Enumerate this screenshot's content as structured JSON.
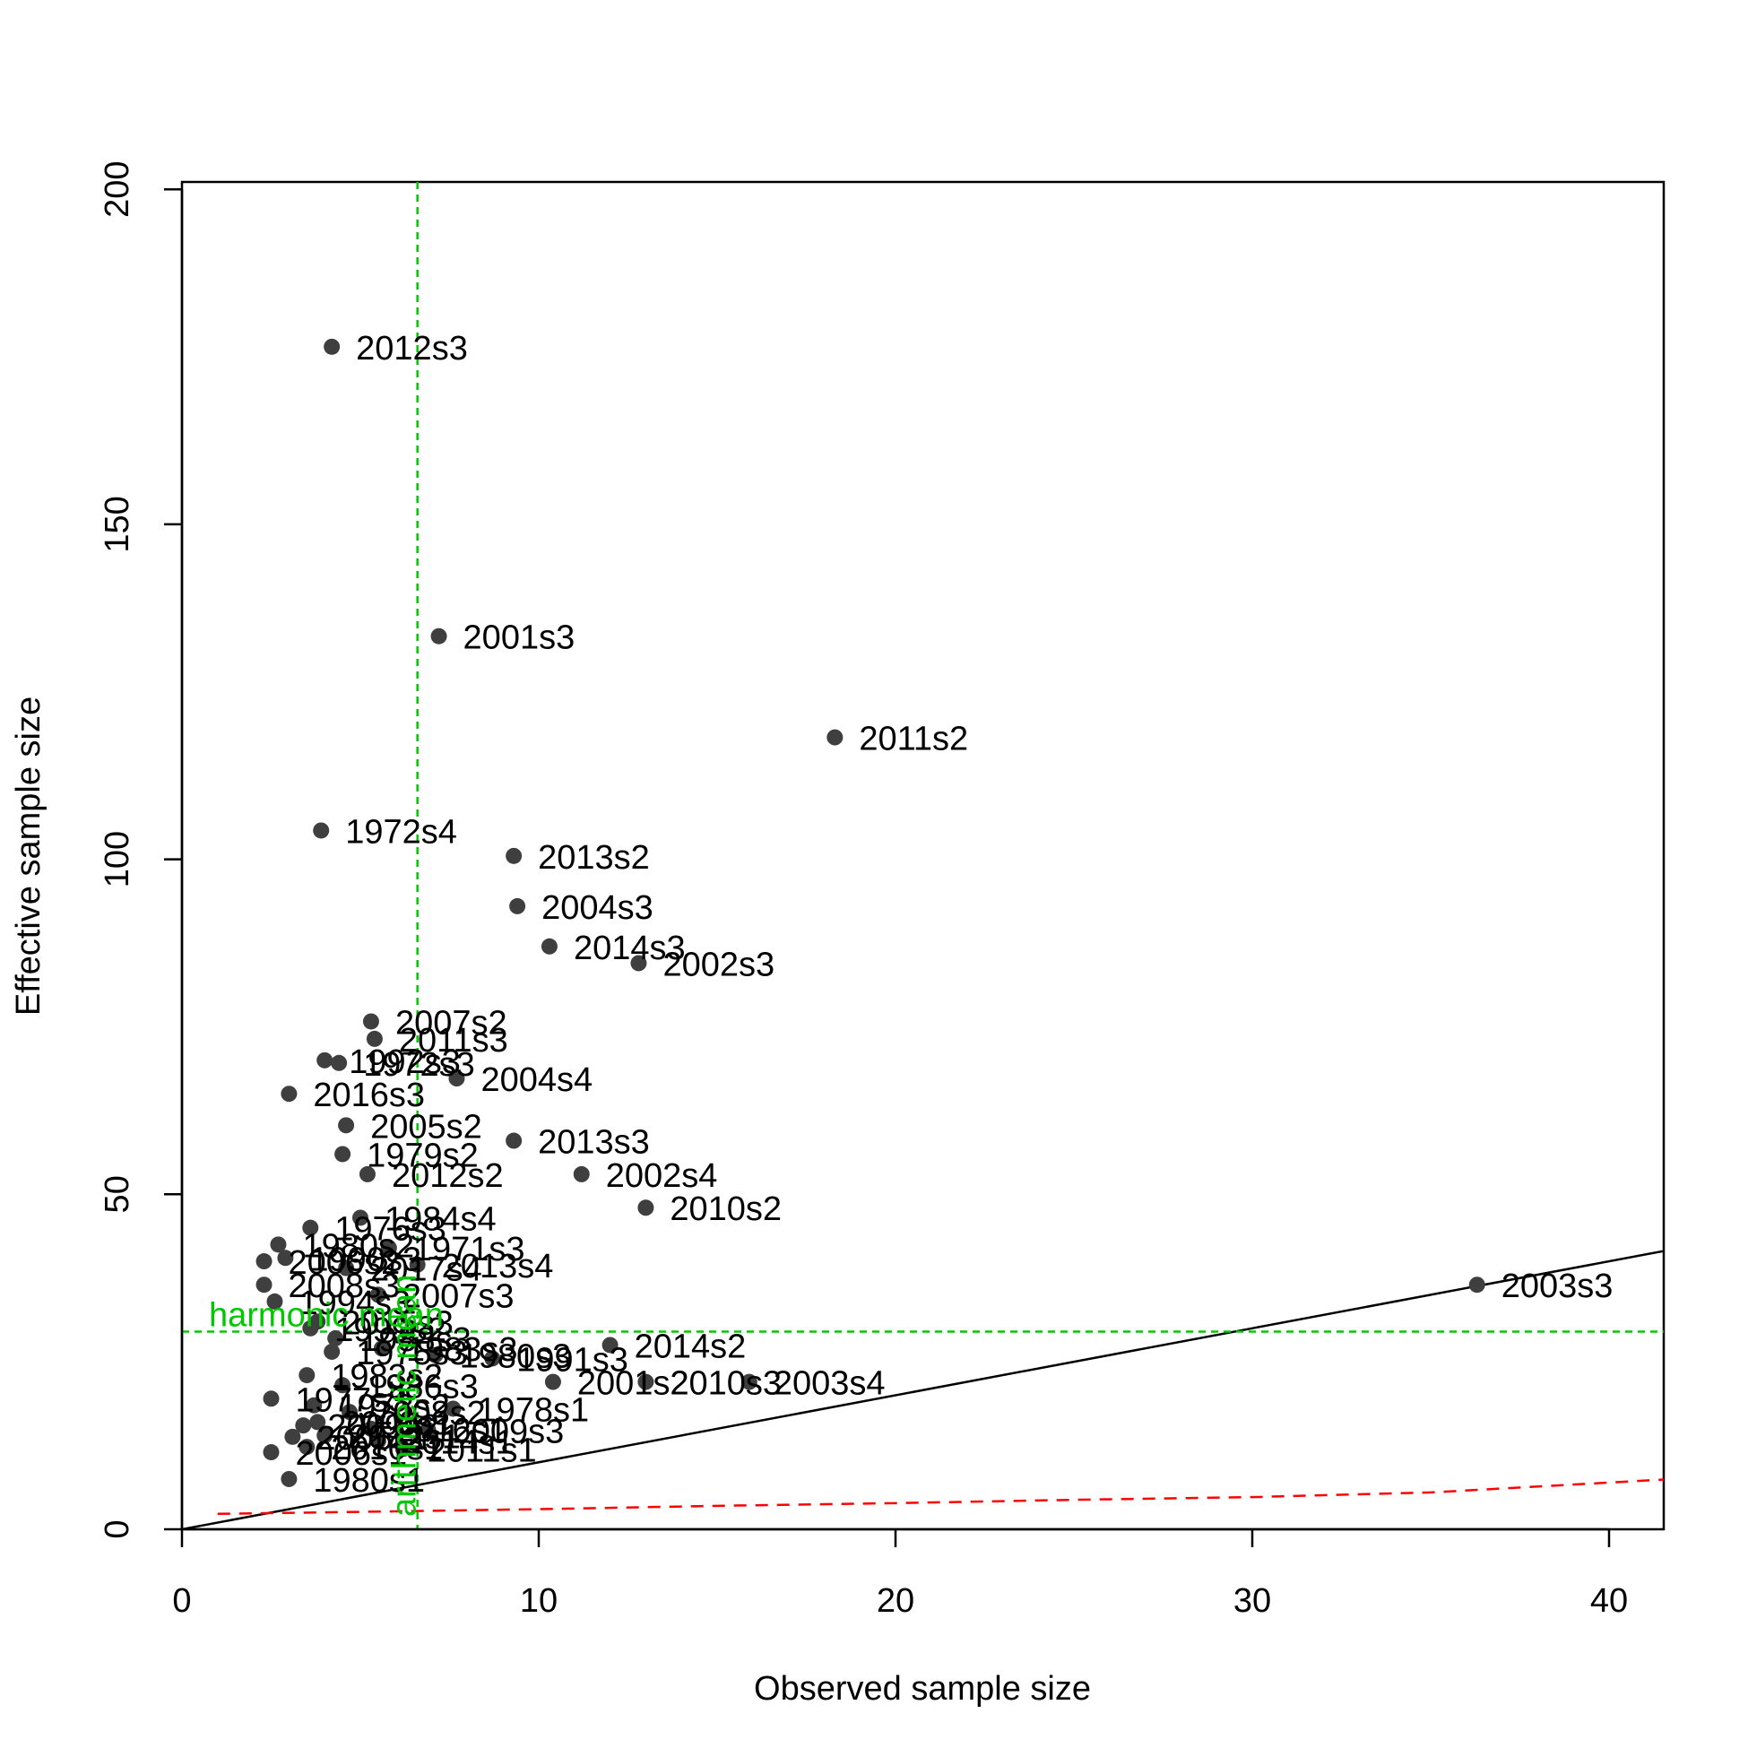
{
  "chart_data": {
    "type": "scatter",
    "title": "",
    "xlabel": "Observed sample size",
    "ylabel": "Effective sample size",
    "xlim": [
      0,
      41.8
    ],
    "ylim": [
      0,
      200
    ],
    "x_ticks": [
      0,
      10,
      20,
      30,
      40
    ],
    "y_ticks": [
      0,
      50,
      100,
      150,
      200
    ],
    "grid": false,
    "colors": {
      "points": "#3f3f3f",
      "identity_line": "#000000",
      "reference_lines": "#00c800",
      "lower_bound_line": "#ff0000"
    },
    "identity_line": {
      "slope": 1,
      "intercept": 0,
      "color": "#000000"
    },
    "reference_lines": {
      "harmonic_mean": {
        "label": "harmonic mean",
        "orientation": "horizontal",
        "value": 29.5
      },
      "arithmetic_mean": {
        "label": "arithmetic mean",
        "orientation": "vertical",
        "value": 6.6
      }
    },
    "lower_bound_line": {
      "style": "dashed",
      "x": [
        1,
        5,
        10,
        15,
        20,
        25,
        30,
        35,
        41.8
      ],
      "y": [
        2.3,
        2.6,
        3.0,
        3.5,
        3.9,
        4.4,
        4.8,
        5.5,
        7.5
      ]
    },
    "points": [
      {
        "label": "2012s3",
        "x": 4.2,
        "y": 176.5
      },
      {
        "label": "2001s3",
        "x": 7.2,
        "y": 133.3
      },
      {
        "label": "2011s2",
        "x": 18.3,
        "y": 118.2
      },
      {
        "label": "1972s4",
        "x": 3.9,
        "y": 104.3
      },
      {
        "label": "2013s2",
        "x": 9.3,
        "y": 100.5
      },
      {
        "label": "2004s3",
        "x": 9.4,
        "y": 93.0
      },
      {
        "label": "2014s3",
        "x": 10.3,
        "y": 87.0
      },
      {
        "label": "2002s3",
        "x": 12.8,
        "y": 84.5
      },
      {
        "label": "2007s2",
        "x": 5.3,
        "y": 75.8
      },
      {
        "label": "2011s3",
        "x": 5.4,
        "y": 73.2
      },
      {
        "label": "1992s3",
        "x": 4.0,
        "y": 70.0
      },
      {
        "label": "1972s3",
        "x": 4.4,
        "y": 69.6
      },
      {
        "label": "2004s4",
        "x": 7.7,
        "y": 67.3
      },
      {
        "label": "2016s3",
        "x": 3.0,
        "y": 65.0
      },
      {
        "label": "2005s2",
        "x": 4.6,
        "y": 60.3
      },
      {
        "label": "2013s3",
        "x": 9.3,
        "y": 58.0
      },
      {
        "label": "1979s2",
        "x": 4.5,
        "y": 56.0
      },
      {
        "label": "2012s2",
        "x": 5.2,
        "y": 53.0
      },
      {
        "label": "2002s4",
        "x": 11.2,
        "y": 53.0
      },
      {
        "label": "2010s2",
        "x": 13.0,
        "y": 48.0
      },
      {
        "label": "1984s4",
        "x": 5.0,
        "y": 46.5
      },
      {
        "label": "1976s3",
        "x": 3.6,
        "y": 45.0
      },
      {
        "label": "1980s2",
        "x": 2.7,
        "y": 42.5
      },
      {
        "label": "1971s3",
        "x": 5.8,
        "y": 42.0
      },
      {
        "label": "1990s3",
        "x": 2.9,
        "y": 40.5
      },
      {
        "label": "2013s4",
        "x": 6.6,
        "y": 39.5
      },
      {
        "label": "2006s2",
        "x": 2.3,
        "y": 40.0
      },
      {
        "label": "2017s4",
        "x": 4.6,
        "y": 39.0
      },
      {
        "label": "2008s3",
        "x": 2.3,
        "y": 36.5
      },
      {
        "label": "2003s3",
        "x": 36.3,
        "y": 36.5
      },
      {
        "label": "2007s3",
        "x": 5.5,
        "y": 35.0
      },
      {
        "label": "1994s3",
        "x": 2.6,
        "y": 34.0
      },
      {
        "label": "2015s3",
        "x": 3.8,
        "y": 31.0
      },
      {
        "label": "1999s2",
        "x": 3.6,
        "y": 30.0
      },
      {
        "label": "1988s3",
        "x": 4.3,
        "y": 28.5
      },
      {
        "label": "1983s3",
        "x": 5.6,
        "y": 27.0
      },
      {
        "label": "2014s2",
        "x": 12.0,
        "y": 27.5
      },
      {
        "label": "1975s3",
        "x": 4.2,
        "y": 26.5
      },
      {
        "label": "1980s3",
        "x": 7.1,
        "y": 26.0
      },
      {
        "label": "1991s3",
        "x": 8.7,
        "y": 25.5
      },
      {
        "label": "1983s2",
        "x": 3.5,
        "y": 23.0
      },
      {
        "label": "1986s3",
        "x": 4.5,
        "y": 21.5
      },
      {
        "label": "2001s2",
        "x": 10.4,
        "y": 22.0
      },
      {
        "label": "2010s3",
        "x": 13.0,
        "y": 22.0
      },
      {
        "label": "2003s4",
        "x": 15.9,
        "y": 22.0
      },
      {
        "label": "1977s3",
        "x": 2.5,
        "y": 19.5
      },
      {
        "label": "1973s2",
        "x": 3.7,
        "y": 18.5
      },
      {
        "label": "2008s2",
        "x": 4.7,
        "y": 17.5
      },
      {
        "label": "1978s1",
        "x": 7.6,
        "y": 18.0
      },
      {
        "label": "2009s2",
        "x": 3.4,
        "y": 15.5
      },
      {
        "label": "2000s1",
        "x": 3.8,
        "y": 16.0
      },
      {
        "label": "2016s1",
        "x": 5.3,
        "y": 15.0
      },
      {
        "label": "2009s3",
        "x": 6.9,
        "y": 14.8
      },
      {
        "label": "2005s1",
        "x": 3.1,
        "y": 13.8
      },
      {
        "label": "2012s1",
        "x": 4.0,
        "y": 14.0
      },
      {
        "label": "2014s1",
        "x": 5.5,
        "y": 13.2
      },
      {
        "label": "2010s1",
        "x": 3.5,
        "y": 12.3
      },
      {
        "label": "2006s1",
        "x": 2.5,
        "y": 11.5
      },
      {
        "label": "2011s1",
        "x": 6.2,
        "y": 12.0
      },
      {
        "label": "1980s1",
        "x": 3.0,
        "y": 7.5
      }
    ]
  }
}
